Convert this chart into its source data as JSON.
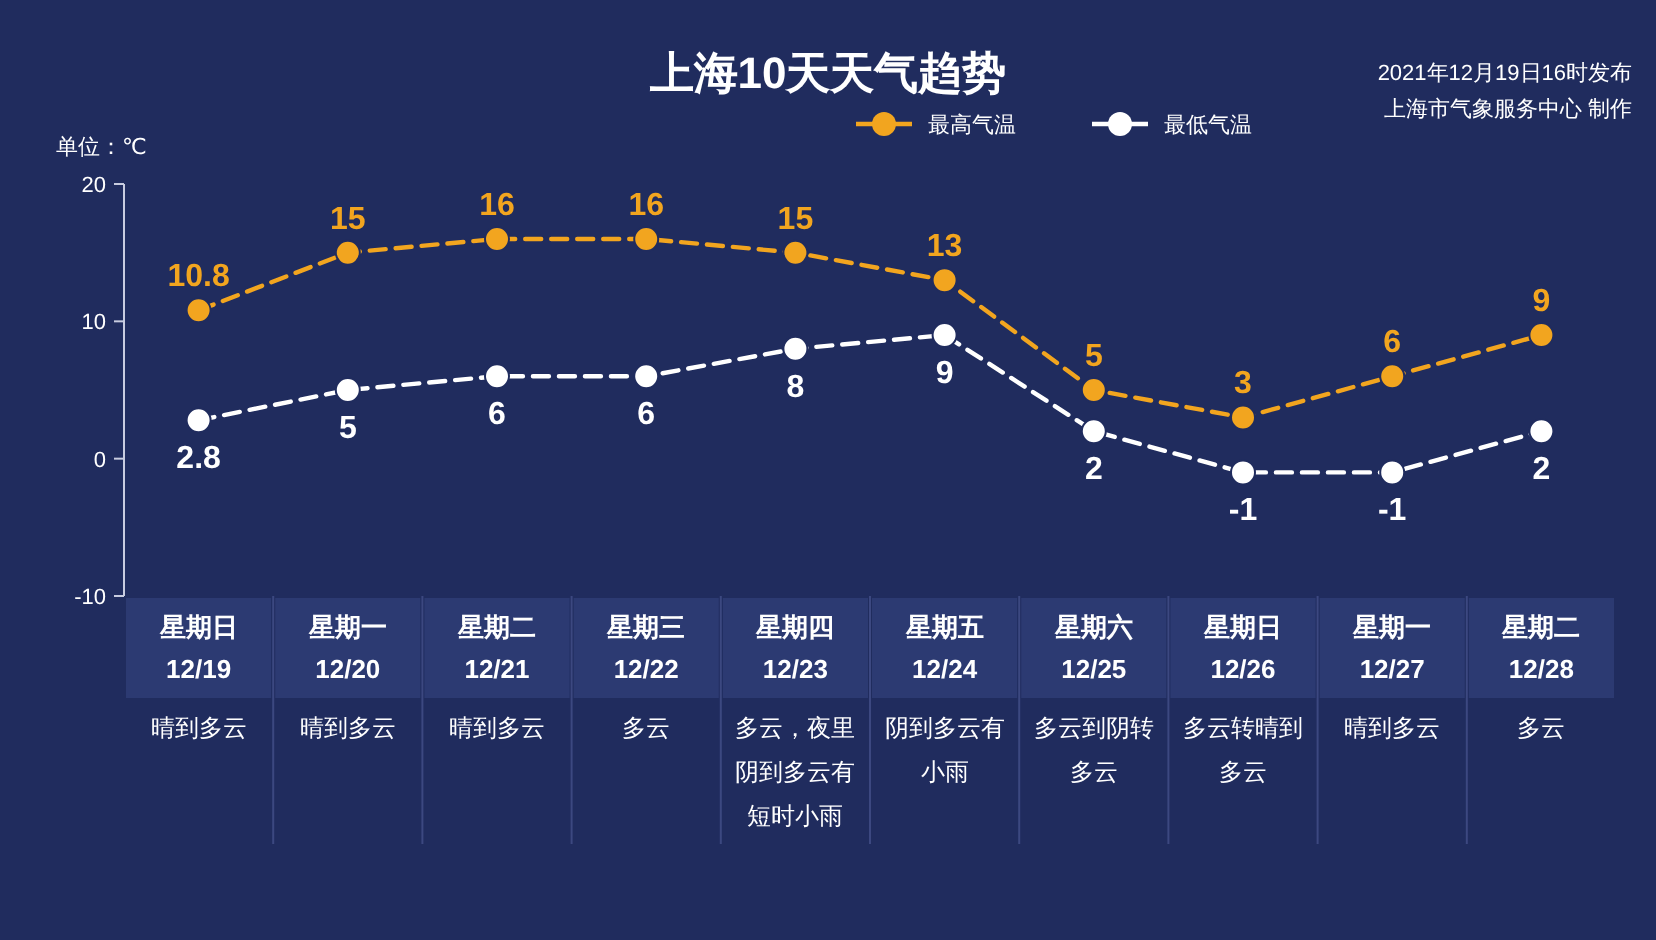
{
  "chart_data": {
    "type": "line",
    "title": "上海10天天气趋势",
    "ylabel": "单位：℃",
    "categories": [
      "星期日\n12/19",
      "星期一\n12/20",
      "星期二\n12/21",
      "星期三\n12/22",
      "星期四\n12/23",
      "星期五\n12/24",
      "星期六\n12/25",
      "星期日\n12/26",
      "星期一\n12/27",
      "星期二\n12/28"
    ],
    "series": [
      {
        "name": "最高气温",
        "color": "#f2a51f",
        "values": [
          10.8,
          15,
          16,
          16,
          15,
          13,
          5,
          3,
          6,
          9
        ]
      },
      {
        "name": "最低气温",
        "color": "#ffffff",
        "values": [
          2.8,
          5,
          6,
          6,
          8,
          9,
          2,
          -1,
          -1,
          2
        ]
      }
    ],
    "ylim": [
      -10,
      20
    ],
    "yticks": [
      -10,
      0,
      10,
      20
    ],
    "grid": false,
    "legend": "top right",
    "marker": "circle",
    "line_style": "dashed",
    "data_labels": true,
    "annotations": [
      "2021年12月19日16时发布",
      "上海市气象服务中心 制作",
      "晴到多云",
      "晴到多云",
      "晴到多云",
      "多云",
      "多云，夜里阴到多云有短时小雨",
      "阴到多云有小雨",
      "多云到阴转多云",
      "多云转晴到多云",
      "晴到多云",
      "多云"
    ]
  }
}
